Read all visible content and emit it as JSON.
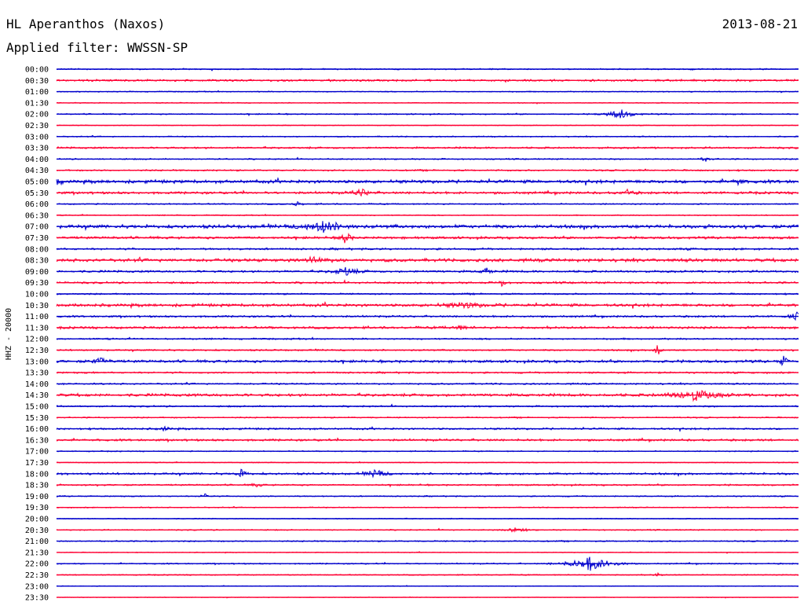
{
  "header": {
    "station": "HL Aperanthos (Naxos)",
    "date": "2013-08-21",
    "filter": "Applied filter: WWSSN-SP"
  },
  "colors": {
    "series_a": "#0000cc",
    "series_b": "#ff0033",
    "background": "#ffffff",
    "text": "#000000"
  },
  "chart_data": {
    "type": "line",
    "title": "HL Aperanthos (Naxos)",
    "subtitle": "Applied filter: WWSSN-SP",
    "ylabel": "HHZ - 20000",
    "xlabel": "",
    "grid": false,
    "legend": "none",
    "row_color_pattern": [
      "#0000cc",
      "#ff0033"
    ],
    "rows": [
      "00:00",
      "00:30",
      "01:00",
      "01:30",
      "02:00",
      "02:30",
      "03:00",
      "03:30",
      "04:00",
      "04:30",
      "05:00",
      "05:30",
      "06:00",
      "06:30",
      "07:00",
      "07:30",
      "08:00",
      "08:30",
      "09:00",
      "09:30",
      "10:00",
      "10:30",
      "11:00",
      "11:30",
      "12:00",
      "12:30",
      "13:00",
      "13:30",
      "14:00",
      "14:30",
      "15:00",
      "15:30",
      "16:00",
      "16:30",
      "17:00",
      "17:30",
      "18:00",
      "18:30",
      "19:00",
      "19:30",
      "20:00",
      "20:30",
      "21:00",
      "21:30",
      "22:00",
      "22:30",
      "23:00",
      "23:30"
    ],
    "noise_level": [
      1.0,
      1.5,
      0.8,
      0.7,
      1.0,
      0.6,
      0.9,
      1.4,
      1.0,
      1.2,
      2.5,
      1.8,
      1.0,
      0.8,
      2.6,
      1.8,
      1.5,
      2.4,
      1.6,
      1.5,
      1.2,
      2.2,
      1.4,
      1.8,
      1.2,
      1.2,
      2.0,
      1.3,
      1.2,
      2.1,
      1.2,
      1.0,
      1.4,
      1.6,
      0.8,
      0.7,
      1.6,
      1.2,
      0.9,
      0.8,
      0.7,
      0.9,
      1.0,
      0.6,
      1.0,
      0.8,
      0.6,
      0.5
    ],
    "events": [
      {
        "row": 4,
        "pos": 0.76,
        "amp": 6,
        "width": 0.012
      },
      {
        "row": 8,
        "pos": 0.875,
        "amp": 3,
        "width": 0.005
      },
      {
        "row": 10,
        "pos": 0.002,
        "amp": 6,
        "width": 0.003
      },
      {
        "row": 10,
        "pos": 0.92,
        "amp": 7,
        "width": 0.003
      },
      {
        "row": 11,
        "pos": 0.41,
        "amp": 5,
        "width": 0.008
      },
      {
        "row": 11,
        "pos": 0.77,
        "amp": 4,
        "width": 0.006
      },
      {
        "row": 12,
        "pos": 0.325,
        "amp": 4,
        "width": 0.003
      },
      {
        "row": 14,
        "pos": 0.36,
        "amp": 7,
        "width": 0.018
      },
      {
        "row": 15,
        "pos": 0.39,
        "amp": 9,
        "width": 0.004
      },
      {
        "row": 17,
        "pos": 0.35,
        "amp": 4,
        "width": 0.012
      },
      {
        "row": 18,
        "pos": 0.39,
        "amp": 5,
        "width": 0.012
      },
      {
        "row": 18,
        "pos": 0.58,
        "amp": 5,
        "width": 0.004
      },
      {
        "row": 19,
        "pos": 0.6,
        "amp": 5,
        "width": 0.003
      },
      {
        "row": 21,
        "pos": 0.55,
        "amp": 3,
        "width": 0.02
      },
      {
        "row": 22,
        "pos": 0.995,
        "amp": 9,
        "width": 0.004
      },
      {
        "row": 23,
        "pos": 0.54,
        "amp": 3,
        "width": 0.008
      },
      {
        "row": 25,
        "pos": 0.81,
        "amp": 10,
        "width": 0.003
      },
      {
        "row": 26,
        "pos": 0.06,
        "amp": 4,
        "width": 0.008
      },
      {
        "row": 26,
        "pos": 0.98,
        "amp": 9,
        "width": 0.003
      },
      {
        "row": 29,
        "pos": 0.86,
        "amp": 7,
        "width": 0.02
      },
      {
        "row": 32,
        "pos": 0.146,
        "amp": 3,
        "width": 0.004
      },
      {
        "row": 36,
        "pos": 0.25,
        "amp": 6,
        "width": 0.004
      },
      {
        "row": 36,
        "pos": 0.43,
        "amp": 6,
        "width": 0.008
      },
      {
        "row": 37,
        "pos": 0.27,
        "amp": 3,
        "width": 0.004
      },
      {
        "row": 38,
        "pos": 0.2,
        "amp": 5,
        "width": 0.003
      },
      {
        "row": 41,
        "pos": 0.62,
        "amp": 3,
        "width": 0.01
      },
      {
        "row": 44,
        "pos": 0.72,
        "amp": 9,
        "width": 0.02
      },
      {
        "row": 45,
        "pos": 0.81,
        "amp": 3,
        "width": 0.003
      }
    ]
  }
}
